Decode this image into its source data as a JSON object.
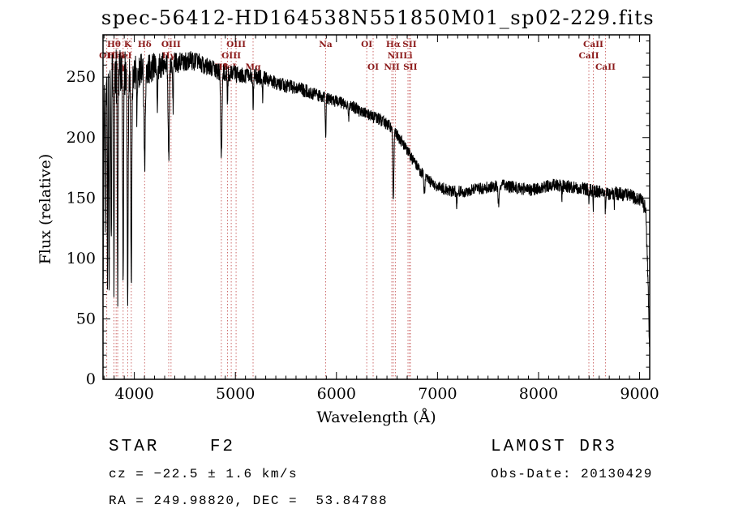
{
  "chart_data": {
    "type": "line",
    "title": "spec-56412-HD164538N551850M01_sp02-229.fits",
    "xlabel": "Wavelength (Å)",
    "ylabel": "Flux (relative)",
    "xlim": [
      3690,
      9100
    ],
    "ylim": [
      0,
      285
    ],
    "xticks": [
      4000,
      5000,
      6000,
      7000,
      8000,
      9000
    ],
    "yticks": [
      0,
      50,
      100,
      150,
      200,
      250
    ],
    "x_minor_step": 100,
    "y_minor_step": 10,
    "grid": false,
    "legend": "none",
    "series_color": "#000000",
    "marker_line_color": "#cc6a6a",
    "marker_label_color": "#8b1a1a",
    "continuum": [
      [
        3690,
        5
      ],
      [
        3694,
        150
      ],
      [
        3700,
        248
      ],
      [
        3720,
        250
      ],
      [
        3760,
        252
      ],
      [
        3800,
        250
      ],
      [
        3850,
        253
      ],
      [
        3900,
        251
      ],
      [
        3950,
        250
      ],
      [
        4000,
        253
      ],
      [
        4050,
        255
      ],
      [
        4150,
        257
      ],
      [
        4250,
        259
      ],
      [
        4350,
        261
      ],
      [
        4450,
        262
      ],
      [
        4550,
        264
      ],
      [
        4650,
        262
      ],
      [
        4750,
        257
      ],
      [
        4850,
        254
      ],
      [
        4950,
        253
      ],
      [
        5050,
        252
      ],
      [
        5150,
        251
      ],
      [
        5250,
        250
      ],
      [
        5350,
        247
      ],
      [
        5450,
        244
      ],
      [
        5550,
        242
      ],
      [
        5650,
        240
      ],
      [
        5750,
        237
      ],
      [
        5850,
        234
      ],
      [
        5950,
        231
      ],
      [
        6050,
        229
      ],
      [
        6150,
        226
      ],
      [
        6250,
        221
      ],
      [
        6350,
        218
      ],
      [
        6450,
        214
      ],
      [
        6550,
        208
      ],
      [
        6650,
        196
      ],
      [
        6750,
        182
      ],
      [
        6850,
        170
      ],
      [
        6950,
        162
      ],
      [
        7050,
        158
      ],
      [
        7150,
        156
      ],
      [
        7250,
        155
      ],
      [
        7350,
        157
      ],
      [
        7450,
        158
      ],
      [
        7550,
        160
      ],
      [
        7650,
        161
      ],
      [
        7750,
        159
      ],
      [
        7850,
        157
      ],
      [
        7950,
        157
      ],
      [
        8050,
        159
      ],
      [
        8150,
        161
      ],
      [
        8250,
        160
      ],
      [
        8350,
        159
      ],
      [
        8450,
        158
      ],
      [
        8550,
        156
      ],
      [
        8650,
        154
      ],
      [
        8750,
        154
      ],
      [
        8850,
        153
      ],
      [
        8950,
        151
      ],
      [
        9020,
        148
      ],
      [
        9060,
        140
      ],
      [
        9085,
        80
      ],
      [
        9100,
        10
      ]
    ],
    "noise": [
      [
        3690,
        25
      ],
      [
        3900,
        22
      ],
      [
        4000,
        15
      ],
      [
        4200,
        12
      ],
      [
        4500,
        8
      ],
      [
        5000,
        7
      ],
      [
        5500,
        6
      ],
      [
        6000,
        5
      ],
      [
        6500,
        5
      ],
      [
        7000,
        5
      ],
      [
        8000,
        5
      ],
      [
        9000,
        6
      ],
      [
        9100,
        8
      ]
    ],
    "absorption_features": [
      {
        "wavelength": 3712,
        "depth": 130,
        "width": 7
      },
      {
        "wavelength": 3734,
        "depth": 160,
        "width": 7
      },
      {
        "wavelength": 3750,
        "depth": 185,
        "width": 8
      },
      {
        "wavelength": 3771,
        "depth": 150,
        "width": 8
      },
      {
        "wavelength": 3798,
        "depth": 160,
        "width": 9
      },
      {
        "wavelength": 3835,
        "depth": 175,
        "width": 9
      },
      {
        "wavelength": 3889,
        "depth": 170,
        "width": 10
      },
      {
        "wavelength": 3934,
        "depth": 185,
        "width": 11
      },
      {
        "wavelength": 3970,
        "depth": 175,
        "width": 11
      },
      {
        "wavelength": 4026,
        "depth": 40,
        "width": 8
      },
      {
        "wavelength": 4102,
        "depth": 80,
        "width": 14
      },
      {
        "wavelength": 4227,
        "depth": 30,
        "width": 8
      },
      {
        "wavelength": 4340,
        "depth": 80,
        "width": 14
      },
      {
        "wavelength": 4383,
        "depth": 35,
        "width": 8
      },
      {
        "wavelength": 4861,
        "depth": 72,
        "width": 14
      },
      {
        "wavelength": 4922,
        "depth": 25,
        "width": 8
      },
      {
        "wavelength": 5175,
        "depth": 22,
        "width": 10
      },
      {
        "wavelength": 5270,
        "depth": 15,
        "width": 8
      },
      {
        "wavelength": 5893,
        "depth": 33,
        "width": 9
      },
      {
        "wavelength": 6122,
        "depth": 15,
        "width": 8
      },
      {
        "wavelength": 6563,
        "depth": 62,
        "width": 12
      },
      {
        "wavelength": 6870,
        "depth": 14,
        "width": 12
      },
      {
        "wavelength": 7190,
        "depth": 10,
        "width": 10
      },
      {
        "wavelength": 7605,
        "depth": 16,
        "width": 16
      },
      {
        "wavelength": 8230,
        "depth": 10,
        "width": 8
      },
      {
        "wavelength": 8498,
        "depth": 12,
        "width": 6
      },
      {
        "wavelength": 8542,
        "depth": 16,
        "width": 6
      },
      {
        "wavelength": 8662,
        "depth": 16,
        "width": 6
      },
      {
        "wavelength": 8750,
        "depth": 10,
        "width": 6
      }
    ],
    "line_markers": [
      {
        "wavelength": 3798,
        "label": "Hθ",
        "row": 1
      },
      {
        "wavelength": 3934,
        "label": "K",
        "row": 1
      },
      {
        "wavelength": 4102,
        "label": "Hδ",
        "row": 1
      },
      {
        "wavelength": 4363,
        "label": "OIII",
        "row": 1
      },
      {
        "wavelength": 5007,
        "label": "OIII",
        "row": 1
      },
      {
        "wavelength": 5893,
        "label": "Na",
        "row": 1
      },
      {
        "wavelength": 6300,
        "label": "OI",
        "row": 1
      },
      {
        "wavelength": 6563,
        "label": "Hα",
        "row": 1
      },
      {
        "wavelength": 6724,
        "label": "SII",
        "row": 1
      },
      {
        "wavelength": 8542,
        "label": "CaII",
        "row": 1
      },
      {
        "wavelength": 3727,
        "label": "OII",
        "row": 2
      },
      {
        "wavelength": 3820,
        "label": "HeI",
        "row": 2
      },
      {
        "wavelength": 3889,
        "label": "HeI",
        "row": 2
      },
      {
        "wavelength": 4340,
        "label": "Hγ",
        "row": 2
      },
      {
        "wavelength": 4959,
        "label": "OIII",
        "row": 2
      },
      {
        "wavelength": 6583,
        "label": "NII",
        "row": 2
      },
      {
        "wavelength": 6708,
        "label": "Li",
        "row": 2
      },
      {
        "wavelength": 8498,
        "label": "CaII",
        "row": 2
      },
      {
        "wavelength": 3835,
        "label": "Hη",
        "row": 3
      },
      {
        "wavelength": 3970,
        "label": "",
        "row": 3
      },
      {
        "wavelength": 4861,
        "label": "Hβ",
        "row": 3
      },
      {
        "wavelength": 4922,
        "label": "HeI",
        "row": 3
      },
      {
        "wavelength": 5175,
        "label": "Mg",
        "row": 3
      },
      {
        "wavelength": 6363,
        "label": "OI",
        "row": 3
      },
      {
        "wavelength": 6548,
        "label": "NII",
        "row": 3
      },
      {
        "wavelength": 6731,
        "label": "SII",
        "row": 3
      },
      {
        "wavelength": 8662,
        "label": "CaII",
        "row": 3
      }
    ]
  },
  "footer": {
    "class_label": "STAR    F2",
    "cz": "cz = −22.5 ± 1.6 km/s",
    "radec": "RA = 249.98820, DEC =  53.84788",
    "survey": "LAMOST DR3",
    "obs_date": "Obs-Date: 20130429"
  }
}
